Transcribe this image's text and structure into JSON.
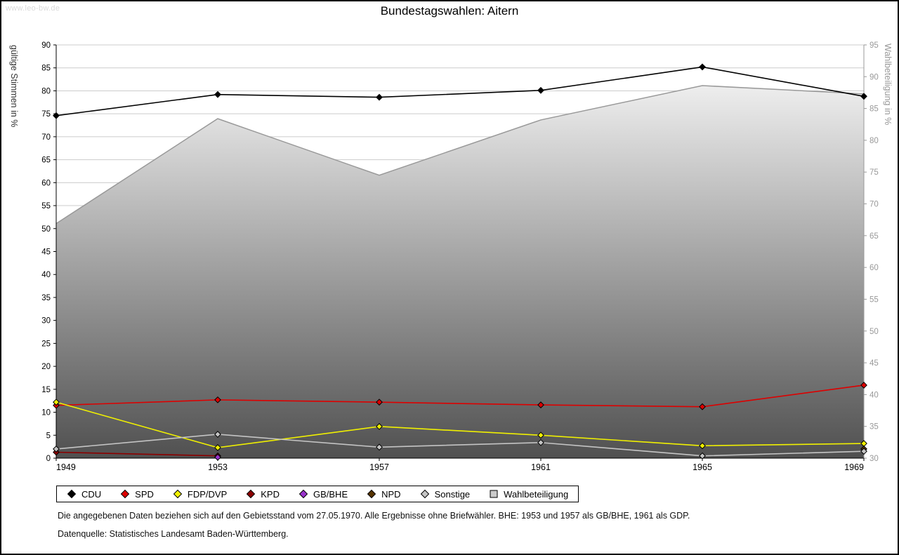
{
  "page": {
    "watermark": "www.leo-bw.de",
    "title": "Bundestagswahlen: Aitern"
  },
  "chart_data": {
    "type": "line",
    "title": "Bundestagswahlen: Aitern",
    "x": [
      1949,
      1953,
      1957,
      1961,
      1965,
      1969
    ],
    "left_axis": {
      "label": "gültige Stimmen in %",
      "min": 0,
      "max": 90,
      "tick_step": 5
    },
    "right_axis": {
      "label": "Wahlbeteiligung in %",
      "min": 30,
      "max": 95,
      "tick_step": 5
    },
    "grid": true,
    "legend_position": "bottom",
    "series": [
      {
        "name": "CDU",
        "color": "#000000",
        "axis": "left",
        "kind": "line",
        "marker": "diamond",
        "values": [
          74.6,
          79.2,
          78.6,
          80.1,
          85.2,
          78.8
        ]
      },
      {
        "name": "SPD",
        "color": "#dd0000",
        "axis": "left",
        "kind": "line",
        "marker": "diamond",
        "values": [
          11.5,
          12.7,
          12.2,
          11.6,
          11.2,
          15.9
        ]
      },
      {
        "name": "FDP/DVP",
        "color": "#f0f000",
        "axis": "left",
        "kind": "line",
        "marker": "diamond",
        "values": [
          12.2,
          2.3,
          6.9,
          5.0,
          2.7,
          3.2
        ]
      },
      {
        "name": "KPD",
        "color": "#8b0000",
        "axis": "left",
        "kind": "line",
        "marker": "diamond",
        "values": [
          1.3,
          0.5,
          null,
          null,
          null,
          null
        ]
      },
      {
        "name": "GB/BHE",
        "color": "#9933cc",
        "axis": "left",
        "kind": "line",
        "marker": "diamond",
        "values": [
          null,
          0.2,
          null,
          null,
          null,
          null
        ]
      },
      {
        "name": "NPD",
        "color": "#553300",
        "axis": "left",
        "kind": "line",
        "marker": "diamond",
        "values": [
          null,
          null,
          null,
          null,
          null,
          2.0
        ]
      },
      {
        "name": "Sonstige",
        "color": "#c4c4c4",
        "axis": "left",
        "kind": "line",
        "marker": "diamond",
        "values": [
          2.0,
          5.2,
          2.4,
          3.4,
          0.5,
          1.5
        ]
      },
      {
        "name": "Wahlbeteiligung",
        "color": "#999999",
        "axis": "right",
        "kind": "area",
        "marker": "square",
        "values": [
          66.9,
          83.4,
          74.5,
          83.2,
          88.6,
          87.3
        ]
      }
    ],
    "colors": {
      "grid": "#cccccc",
      "left_axis": "#000000",
      "right_axis": "#999999",
      "area_gradient_top": "#ffffff",
      "area_gradient_bottom": "#505050",
      "area_edge": "#999999"
    }
  },
  "footnotes": [
    "Die angegebenen Daten beziehen sich auf den Gebietsstand vom 27.05.1970. Alle Ergebnisse ohne Briefwähler. BHE: 1953 und 1957 als GB/BHE, 1961 als GDP.",
    "Datenquelle: Statistisches Landesamt Baden-Württemberg."
  ]
}
